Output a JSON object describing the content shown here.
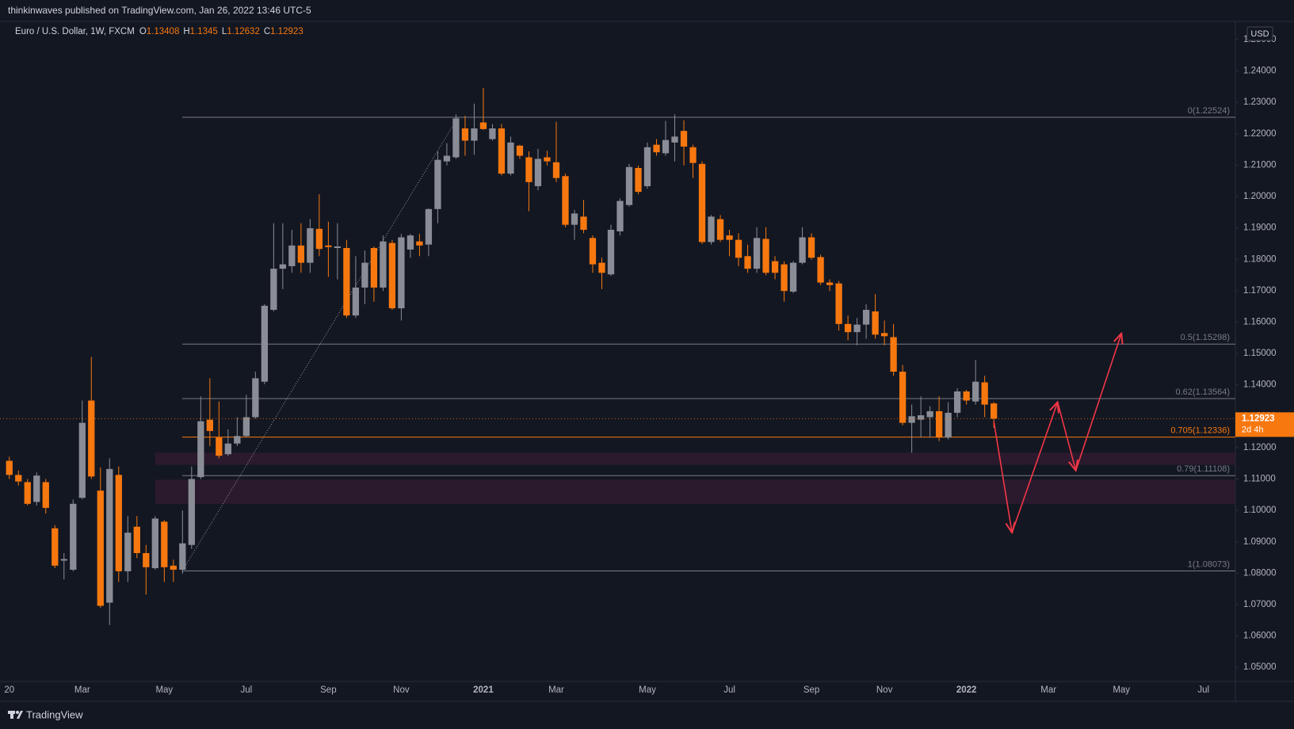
{
  "header": {
    "publisher": "thinkinwaves published on TradingView.com, Jan 26, 2022 13:46 UTC-5"
  },
  "footer": {
    "brand": "TradingView"
  },
  "chart_data": {
    "type": "candlestick",
    "symbol": "Euro / U.S. Dollar, 1W, FXCM",
    "ohlc_letters": [
      "O",
      "H",
      "L",
      "C"
    ],
    "currency": "USD",
    "countdown": "2d 4h",
    "up_color": "#8a8d96",
    "down_color": "#f7780f",
    "grid": false,
    "ylim": [
      1.0455,
      1.2558
    ],
    "yticks": [
      {
        "value": 1.05,
        "label": "1.05000"
      },
      {
        "value": 1.06,
        "label": "1.06000"
      },
      {
        "value": 1.07,
        "label": "1.07000"
      },
      {
        "value": 1.08,
        "label": "1.08000"
      },
      {
        "value": 1.09,
        "label": "1.09000"
      },
      {
        "value": 1.1,
        "label": "1.10000"
      },
      {
        "value": 1.11,
        "label": "1.11000"
      },
      {
        "value": 1.12,
        "label": "1.12000"
      },
      {
        "value": 1.13,
        "label": "1.13000"
      },
      {
        "value": 1.14,
        "label": "1.14000"
      },
      {
        "value": 1.15,
        "label": "1.15000"
      },
      {
        "value": 1.16,
        "label": "1.16000"
      },
      {
        "value": 1.17,
        "label": "1.17000"
      },
      {
        "value": 1.18,
        "label": "1.18000"
      },
      {
        "value": 1.19,
        "label": "1.19000"
      },
      {
        "value": 1.2,
        "label": "1.20000"
      },
      {
        "value": 1.21,
        "label": "1.21000"
      },
      {
        "value": 1.22,
        "label": "1.22000"
      },
      {
        "value": 1.23,
        "label": "1.23000"
      },
      {
        "value": 1.24,
        "label": "1.24000"
      },
      {
        "value": 1.25,
        "label": "1.25000"
      }
    ],
    "categories": [
      "20",
      null,
      null,
      null,
      null,
      null,
      null,
      null,
      "Mar",
      null,
      null,
      null,
      null,
      null,
      null,
      null,
      null,
      "May",
      null,
      null,
      null,
      null,
      null,
      null,
      null,
      null,
      "Jul",
      null,
      null,
      null,
      null,
      null,
      null,
      null,
      null,
      "Sep",
      null,
      null,
      null,
      null,
      null,
      null,
      null,
      "Nov",
      null,
      null,
      null,
      null,
      null,
      null,
      null,
      null,
      "2021",
      null,
      null,
      null,
      null,
      null,
      null,
      null,
      "Mar",
      null,
      null,
      null,
      null,
      null,
      null,
      null,
      null,
      null,
      "May",
      null,
      null,
      null,
      null,
      null,
      null,
      null,
      null,
      "Jul",
      null,
      null,
      null,
      null,
      null,
      null,
      null,
      null,
      "Sep",
      null,
      null,
      null,
      null,
      null,
      null,
      null,
      "Nov",
      null,
      null,
      null,
      null,
      null,
      null,
      null,
      null,
      "2022",
      null,
      null,
      null,
      null,
      null,
      null,
      null,
      null,
      "Mar",
      null,
      null,
      null,
      null,
      null,
      null,
      null,
      "May",
      null,
      null,
      null,
      null,
      null,
      null,
      null,
      null,
      "Jul",
      null,
      null,
      null
    ],
    "open": [
      1.1158,
      1.1113,
      1.109,
      1.1027,
      1.109,
      1.0943,
      1.084,
      1.0811,
      1.104,
      1.135,
      1.1063,
      1.0706,
      1.1113,
      1.0806,
      1.0948,
      1.0864,
      1.0816,
      1.0964,
      1.0824,
      1.0811,
      1.089,
      1.1106,
      1.1289,
      1.1232,
      1.1179,
      1.1213,
      1.1237,
      1.1297,
      1.141,
      1.1639,
      1.177,
      1.1778,
      1.1844,
      1.1789,
      1.1897,
      1.1844,
      1.1836,
      1.1836,
      1.1621,
      1.171,
      1.1836,
      1.171,
      1.1852,
      1.1644,
      1.1831,
      1.1857,
      1.1847,
      1.196,
      1.2112,
      1.2125,
      1.2217,
      1.2178,
      1.2236,
      1.2183,
      1.2217,
      1.2073,
      1.2162,
      1.2125,
      1.2033,
      1.2125,
      1.2109,
      1.2065,
      1.191,
      1.1936,
      1.1868,
      1.1789,
      1.1752,
      1.1889,
      1.1973,
      1.2091,
      1.2033,
      1.2165,
      1.2138,
      1.2172,
      1.2209,
      1.2157,
      1.2104,
      1.1855,
      1.1928,
      1.1876,
      1.1862,
      1.181,
      1.177,
      1.1865,
      1.1794,
      1.1784,
      1.1697,
      1.1789,
      1.187,
      1.1807,
      1.1726,
      1.1723,
      1.1594,
      1.1568,
      1.1592,
      1.1634,
      1.1565,
      1.1552,
      1.1442,
      1.1279,
      1.1289,
      1.1297,
      1.1316,
      1.1232,
      1.1311,
      1.1379,
      1.1347,
      1.1408,
      1.13408,
      null,
      null,
      null,
      null,
      null,
      null,
      null,
      null,
      null,
      null,
      null,
      null,
      null,
      null,
      null,
      null,
      null,
      null,
      null,
      null,
      null,
      null,
      null,
      null,
      null,
      null
    ],
    "high": [
      1.1171,
      1.1127,
      1.11,
      1.1121,
      1.11,
      1.0953,
      1.0864,
      1.1035,
      1.135,
      1.1489,
      1.1137,
      1.1166,
      1.114,
      1.0982,
      1.0982,
      1.089,
      1.0982,
      1.0969,
      1.0843,
      1.1,
      1.114,
      1.1363,
      1.1421,
      1.1347,
      1.1258,
      1.1297,
      1.1368,
      1.1442,
      1.1657,
      1.1915,
      1.1915,
      1.1894,
      1.1915,
      1.1928,
      1.2007,
      1.192,
      1.1915,
      1.1862,
      1.181,
      1.1828,
      1.1841,
      1.1876,
      1.1862,
      1.1881,
      1.1881,
      1.1881,
      1.1962,
      1.2144,
      1.217,
      1.2262,
      1.2257,
      1.2296,
      1.2346,
      1.2231,
      1.2231,
      1.2191,
      1.2165,
      1.2144,
      1.2152,
      1.2146,
      1.2238,
      1.2073,
      1.1957,
      1.1989,
      1.1876,
      1.1805,
      1.191,
      1.1994,
      1.2104,
      1.2099,
      1.2172,
      1.2183,
      1.2241,
      1.2262,
      1.2243,
      1.2165,
      1.2112,
      1.1941,
      1.1941,
      1.1894,
      1.1883,
      1.1847,
      1.1902,
      1.1902,
      1.181,
      1.1794,
      1.1794,
      1.1902,
      1.1883,
      1.1815,
      1.1736,
      1.1731,
      1.1621,
      1.1613,
      1.1657,
      1.1689,
      1.1605,
      1.1594,
      1.1463,
      1.1337,
      1.1363,
      1.1332,
      1.1363,
      1.1345,
      1.1389,
      1.1384,
      1.1479,
      1.1429,
      1.1345,
      null,
      null,
      null,
      null,
      null,
      null,
      null,
      null,
      null,
      null,
      null,
      null,
      null,
      null,
      null,
      null,
      null,
      null,
      null,
      null,
      null,
      null,
      null,
      null,
      null,
      null
    ],
    "low": [
      1.11,
      1.1079,
      1.1016,
      1.1016,
      1.099,
      1.0816,
      1.078,
      1.0806,
      1.1035,
      1.11,
      1.069,
      1.0635,
      1.0772,
      1.0772,
      1.0848,
      1.0732,
      1.0811,
      1.0772,
      1.0772,
      1.0798,
      1.0877,
      1.11,
      1.1205,
      1.1166,
      1.1174,
      1.1205,
      1.1232,
      1.1292,
      1.1402,
      1.1634,
      1.1705,
      1.1757,
      1.1757,
      1.1757,
      1.181,
      1.1744,
      1.1736,
      1.1613,
      1.1613,
      1.1657,
      1.1665,
      1.1699,
      1.1639,
      1.1605,
      1.1805,
      1.181,
      1.181,
      1.1915,
      1.2099,
      1.212,
      1.213,
      1.2133,
      1.2212,
      1.2178,
      1.2067,
      1.2067,
      1.212,
      1.1953,
      1.202,
      1.2099,
      1.2046,
      1.1902,
      1.1862,
      1.1883,
      1.1757,
      1.1705,
      1.1747,
      1.1876,
      1.1968,
      1.2007,
      1.2025,
      1.213,
      1.213,
      1.2112,
      1.2099,
      1.2059,
      1.1849,
      1.1847,
      1.1855,
      1.181,
      1.1778,
      1.1757,
      1.1757,
      1.1749,
      1.1736,
      1.1665,
      1.1692,
      1.1784,
      1.1799,
      1.1718,
      1.1699,
      1.1573,
      1.1542,
      1.1526,
      1.1547,
      1.1547,
      1.1526,
      1.1429,
      1.1271,
      1.1184,
      1.1232,
      1.1232,
      1.1221,
      1.1226,
      1.1297,
      1.1337,
      1.1337,
      1.1297,
      1.12632,
      null,
      null,
      null,
      null,
      null,
      null,
      null,
      null,
      null,
      null,
      null,
      null,
      null,
      null,
      null,
      null,
      null,
      null,
      null,
      null,
      null,
      null,
      null,
      null,
      null,
      null
    ],
    "close": [
      1.1113,
      1.1092,
      1.1021,
      1.1111,
      1.1008,
      1.0824,
      1.0845,
      1.1021,
      1.1279,
      1.1108,
      1.0696,
      1.1132,
      1.0806,
      1.0929,
      1.0864,
      1.0819,
      1.0974,
      1.0819,
      1.0811,
      1.0895,
      1.11,
      1.1284,
      1.1253,
      1.1174,
      1.1213,
      1.1237,
      1.1297,
      1.1421,
      1.1652,
      1.177,
      1.1784,
      1.1844,
      1.1789,
      1.1899,
      1.1833,
      1.1839,
      1.1841,
      1.1621,
      1.171,
      1.1789,
      1.171,
      1.1857,
      1.1644,
      1.187,
      1.1876,
      1.1844,
      1.196,
      1.2117,
      1.213,
      1.2249,
      1.2178,
      1.2217,
      1.2215,
      1.2217,
      1.2073,
      1.2172,
      1.213,
      1.2046,
      1.212,
      1.2112,
      1.2059,
      1.191,
      1.1946,
      1.1894,
      1.1784,
      1.1757,
      1.1894,
      1.1986,
      1.2094,
      1.2015,
      1.2157,
      1.2141,
      1.218,
      1.2191,
      1.2159,
      1.2107,
      1.1855,
      1.1936,
      1.1862,
      1.1862,
      1.1805,
      1.177,
      1.1868,
      1.1757,
      1.1757,
      1.1699,
      1.1789,
      1.187,
      1.1805,
      1.1726,
      1.1718,
      1.1594,
      1.1568,
      1.1592,
      1.1639,
      1.156,
      1.1555,
      1.1442,
      1.1279,
      1.13,
      1.1303,
      1.1316,
      1.1232,
      1.1311,
      1.1379,
      1.135,
      1.141,
      1.1337,
      1.12923,
      null,
      null,
      null,
      null,
      null,
      null,
      null,
      null,
      null,
      null,
      null,
      null,
      null,
      null,
      null,
      null,
      null,
      null,
      null,
      null,
      null,
      null,
      null,
      null,
      null,
      null
    ],
    "fib_levels": [
      {
        "label": "0(1.22524)",
        "value": 1.22524,
        "color": "#787b86"
      },
      {
        "label": "0.5(1.15298)",
        "value": 1.15298,
        "color": "#787b86"
      },
      {
        "label": "0.62(1.13564)",
        "value": 1.13564,
        "color": "#787b86"
      },
      {
        "label": "0.705(1.12336)",
        "value": 1.12336,
        "color": "#f7780f"
      },
      {
        "label": "0.79(1.11108)",
        "value": 1.11108,
        "color": "#787b86"
      },
      {
        "label": "1(1.08073)",
        "value": 1.08073,
        "color": "#787b86"
      }
    ],
    "zone_color": "#2b1a2e",
    "zones": [
      {
        "from": 1.1145,
        "to": 1.1184
      },
      {
        "from": 1.1021,
        "to": 1.1098
      }
    ],
    "projection": {
      "color": "#f23645",
      "x": [
        108,
        110,
        115,
        117,
        122
      ],
      "y": [
        1.1284,
        1.0929,
        1.1345,
        1.1127,
        1.1564
      ]
    }
  }
}
